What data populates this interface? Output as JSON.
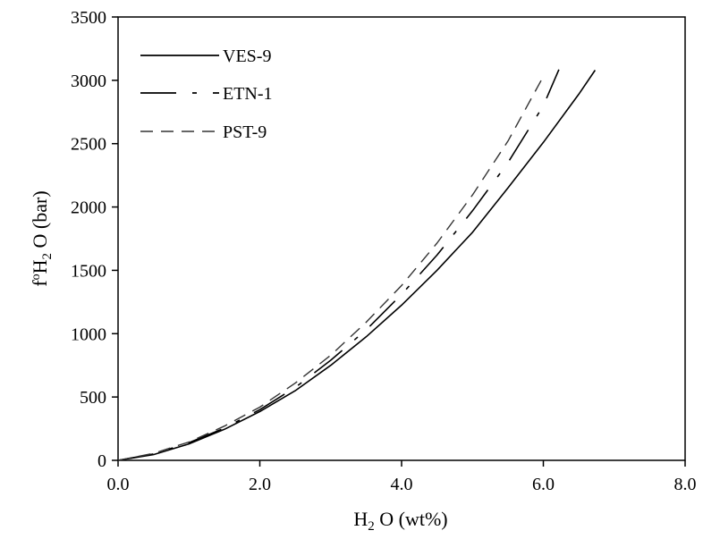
{
  "chart_data": {
    "type": "line",
    "title": "",
    "xlabel": {
      "main": "H",
      "sub": "2",
      "rest": " O (wt%)"
    },
    "ylabel": {
      "main": "f",
      "sup": "o",
      "h": "H",
      "sub": "2",
      "rest": " O (bar)"
    },
    "xlim": [
      0,
      8
    ],
    "ylim": [
      0,
      3500
    ],
    "x_ticks": [
      "0.0",
      "2.0",
      "4.0",
      "6.0",
      "8.0"
    ],
    "x_tick_values": [
      0,
      2,
      4,
      6,
      8
    ],
    "y_ticks": [
      "0",
      "500",
      "1000",
      "1500",
      "2000",
      "2500",
      "3000",
      "3500"
    ],
    "y_tick_values": [
      0,
      500,
      1000,
      1500,
      2000,
      2500,
      3000,
      3500
    ],
    "grid": false,
    "legend_position": "top-left",
    "series": [
      {
        "name": "VES-9",
        "dash": "solid",
        "x": [
          0.0,
          0.5,
          1.0,
          1.5,
          2.0,
          2.5,
          3.0,
          3.5,
          4.0,
          4.5,
          5.0,
          5.5,
          6.0,
          6.5,
          6.73
        ],
        "y": [
          0,
          45,
          130,
          245,
          385,
          550,
          750,
          975,
          1225,
          1500,
          1800,
          2150,
          2510,
          2890,
          3080
        ]
      },
      {
        "name": "ETN-1",
        "dash": "long-dash-dot",
        "x": [
          0.0,
          0.5,
          1.0,
          1.5,
          2.0,
          2.5,
          3.0,
          3.5,
          4.0,
          4.5,
          5.0,
          5.5,
          6.0,
          6.22
        ],
        "y": [
          0,
          50,
          140,
          255,
          400,
          575,
          790,
          1030,
          1310,
          1620,
          1970,
          2350,
          2800,
          3085
        ]
      },
      {
        "name": "PST-9",
        "dash": "dashed",
        "x": [
          0.0,
          0.5,
          1.0,
          1.5,
          2.0,
          2.5,
          3.0,
          3.5,
          4.0,
          4.5,
          5.0,
          5.5,
          5.99
        ],
        "y": [
          0,
          55,
          145,
          270,
          420,
          610,
          830,
          1090,
          1380,
          1715,
          2095,
          2520,
          3020
        ]
      }
    ]
  }
}
